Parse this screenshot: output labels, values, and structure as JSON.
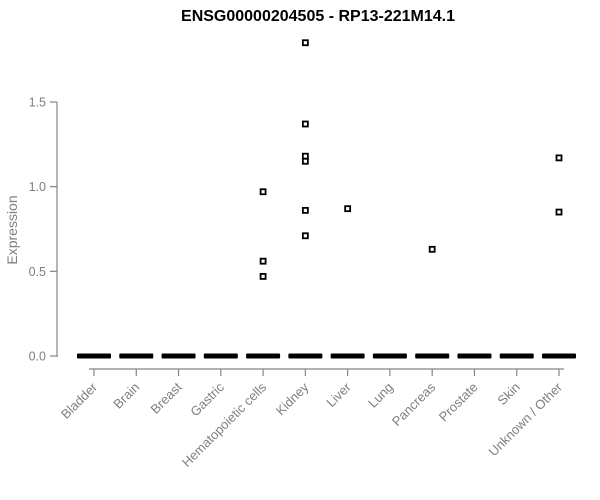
{
  "chart_data": {
    "type": "boxplot",
    "variant": "collapsed-boxes-at-zero-with-square-outlier-points",
    "title": "ENSG00000204505 - RP13-221M14.1",
    "xlabel": "",
    "ylabel": "Expression",
    "ylim": [
      0,
      1.9
    ],
    "grid": false,
    "legend": false,
    "ytick_values": [
      0,
      0.5,
      1,
      1.5
    ],
    "ytick_labels": [
      "0.0",
      "0.5",
      "1.0",
      "1.5"
    ],
    "categories": [
      "Bladder",
      "Brain",
      "Breast",
      "Gastric",
      "Hematopoietic cells",
      "Kidney",
      "Liver",
      "Lung",
      "Pancreas",
      "Prostate",
      "Skin",
      "Unknown / Other"
    ],
    "series": [
      {
        "category": "Bladder",
        "box_at": 0,
        "outliers": []
      },
      {
        "category": "Brain",
        "box_at": 0,
        "outliers": []
      },
      {
        "category": "Breast",
        "box_at": 0,
        "outliers": []
      },
      {
        "category": "Gastric",
        "box_at": 0,
        "outliers": []
      },
      {
        "category": "Hematopoietic cells",
        "box_at": 0,
        "outliers": [
          0.97,
          0.56,
          0.47
        ]
      },
      {
        "category": "Kidney",
        "box_at": 0,
        "outliers": [
          1.85,
          1.37,
          1.18,
          1.15,
          0.86,
          0.71
        ]
      },
      {
        "category": "Liver",
        "box_at": 0,
        "outliers": [
          0.87
        ]
      },
      {
        "category": "Lung",
        "box_at": 0,
        "outliers": []
      },
      {
        "category": "Pancreas",
        "box_at": 0,
        "outliers": [
          0.63
        ]
      },
      {
        "category": "Prostate",
        "box_at": 0,
        "outliers": []
      },
      {
        "category": "Skin",
        "box_at": 0,
        "outliers": []
      },
      {
        "category": "Unknown / Other",
        "box_at": 0,
        "outliers": [
          1.17,
          0.85
        ]
      }
    ]
  },
  "colors": {
    "background": "#ffffff",
    "title": "#000000",
    "axis": "#858585",
    "tick_labels": "#7f7f7f",
    "box": "#000000",
    "marker_stroke": "#000000",
    "marker_fill": "#ffffff"
  }
}
